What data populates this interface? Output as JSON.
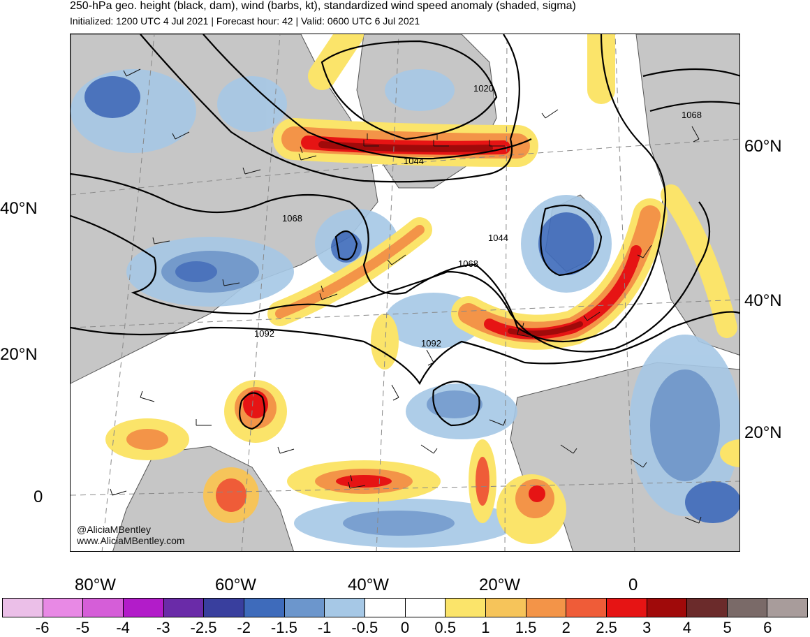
{
  "header": {
    "title": "250-hPa geo. height (black, dam), wind (barbs, kt), standardized wind speed anomaly (shaded, sigma)",
    "subtitle": "Initialized: 1200 UTC 4 Jul 2021 | Forecast hour: 42 | Valid: 0600 UTC 6 Jul 2021"
  },
  "axes": {
    "left_lat_labels": [
      "40°N",
      "20°N",
      "0"
    ],
    "right_lat_labels": [
      "60°N",
      "40°N",
      "20°N"
    ],
    "lon_labels": [
      "80°W",
      "60°W",
      "40°W",
      "20°W",
      "0"
    ]
  },
  "contours": {
    "labels": [
      "1020",
      "1044",
      "1068",
      "1044",
      "1068",
      "1092",
      "1092",
      "1068"
    ]
  },
  "credits": {
    "handle": "@AliciaMBentley",
    "website": "www.AliciaMBentley.com"
  },
  "colorbar": {
    "colors": [
      "#ebbfe8",
      "#e889e5",
      "#d55ed8",
      "#b21cc9",
      "#6a2ba8",
      "#393f9e",
      "#3e6bbb",
      "#6c96cc",
      "#a6c8e6",
      "#ffffff",
      "#ffffff",
      "#fbe46a",
      "#f6c45a",
      "#f39448",
      "#ef5c38",
      "#e61414",
      "#a00a0a",
      "#6b2b2b",
      "#7a6a68",
      "#a89c9b"
    ],
    "tick_labels": [
      "-6",
      "-5",
      "-4",
      "-3",
      "-2.5",
      "-2",
      "-1.5",
      "-1",
      "-0.5",
      "0",
      "0.5",
      "1",
      "1.5",
      "2",
      "2.5",
      "3",
      "4",
      "5",
      "6"
    ]
  },
  "map_colors": {
    "land": "#c6c6c6",
    "coast": "#555555",
    "contour": "#000000"
  }
}
